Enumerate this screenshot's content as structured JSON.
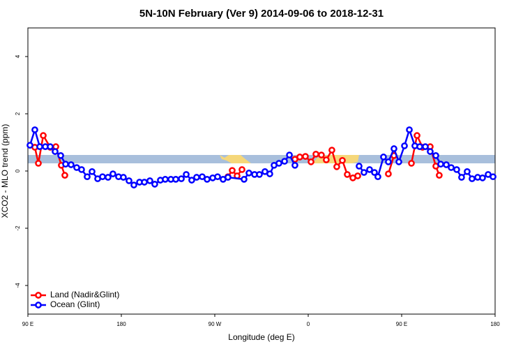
{
  "chart_data": {
    "type": "line",
    "title": "5N-10N February (Ver 9)   2014-09-06 to 2018-12-31",
    "x_label": "Longitude (deg E)",
    "y_label": "XCO2 - MLO trend (ppm)",
    "xlim": [
      90,
      540
    ],
    "ylim": [
      -5,
      5
    ],
    "xticks": [
      {
        "value": 90,
        "label": "90 E"
      },
      180,
      {
        "value": 270,
        "label": "90 W"
      },
      {
        "value": 360,
        "label": "0"
      },
      {
        "value": 450,
        "label": "90 E"
      },
      {
        "value": 540,
        "label": "180"
      }
    ],
    "yticks": [
      -4,
      -2,
      0,
      2,
      4
    ],
    "legend": "bottom-left",
    "series": [
      {
        "name": "Land (Nadir&Glint)",
        "color": "#ff0000",
        "x": [
          96.7,
          100.1,
          104.8,
          111.5,
          116.9,
          122.2,
          125.6,
          204,
          282.7,
          286.8,
          291.5,
          296.2,
          322,
          347.2,
          351.9,
          357.3,
          362.7,
          367.4,
          372.7,
          377.4,
          382.8,
          387.5,
          392.9,
          397.6,
          403.0,
          407.7,
          422,
          437.2,
          442.6,
          451,
          459.4,
          464.8,
          470.1,
          477.5,
          482.9,
          486.2
        ],
        "values": [
          0.83,
          0.27,
          1.24,
          0.83,
          0.85,
          0.2,
          -0.15,
          null,
          -0.2,
          0.02,
          -0.17,
          0.05,
          null,
          0.41,
          0.49,
          0.51,
          0.32,
          0.59,
          0.56,
          0.39,
          0.73,
          0.15,
          0.37,
          -0.12,
          -0.24,
          -0.17,
          null,
          -0.1,
          0.54,
          null,
          0.27,
          1.24,
          0.83,
          0.85,
          0.17,
          -0.15
        ]
      },
      {
        "name": "Ocean (Glint)",
        "color": "#0000ff",
        "x": [
          92.0,
          96.7,
          101.4,
          106.8,
          111.5,
          116.2,
          121.6,
          126.3,
          131.6,
          137.0,
          141.7,
          147.1,
          151.8,
          157.2,
          161.9,
          167.2,
          171.9,
          177.3,
          182.0,
          187.4,
          192.1,
          197.5,
          202.2,
          207.5,
          212.2,
          217.6,
          222.3,
          227.7,
          232.4,
          237.8,
          242.5,
          247.8,
          252.5,
          257.9,
          262.6,
          268.0,
          272.7,
          278.0,
          282.7,
          298.2,
          302.9,
          308.3,
          313.0,
          318.3,
          323.0,
          327.1,
          331.8,
          337.2,
          341.9,
          347.2,
          378,
          409.0,
          413.7,
          419.1,
          423.8,
          427.1,
          432.5,
          437.2,
          442.6,
          447.3,
          452.7,
          457.4,
          462.7,
          467.4,
          472.8,
          477.5,
          482.9,
          487.6,
          493.0,
          497.7,
          503.0,
          507.7,
          513.1,
          517.8,
          523.2,
          527.9,
          533.3,
          538.0
        ],
        "values": [
          0.9,
          1.44,
          0.85,
          0.85,
          0.85,
          0.68,
          0.54,
          0.24,
          0.22,
          0.12,
          0.05,
          -0.2,
          -0.02,
          -0.27,
          -0.2,
          -0.22,
          -0.1,
          -0.2,
          -0.22,
          -0.34,
          -0.49,
          -0.39,
          -0.39,
          -0.34,
          -0.46,
          -0.32,
          -0.29,
          -0.29,
          -0.29,
          -0.27,
          -0.12,
          -0.32,
          -0.22,
          -0.2,
          -0.29,
          -0.24,
          -0.2,
          -0.29,
          -0.22,
          -0.29,
          -0.07,
          -0.12,
          -0.12,
          -0.02,
          -0.1,
          0.2,
          0.27,
          0.34,
          0.56,
          0.2,
          null,
          0.17,
          -0.05,
          0.05,
          -0.05,
          -0.2,
          0.49,
          0.32,
          0.78,
          0.32,
          0.88,
          1.44,
          0.88,
          0.85,
          0.85,
          0.68,
          0.54,
          0.24,
          0.22,
          0.12,
          0.05,
          -0.22,
          -0.02,
          -0.27,
          -0.22,
          -0.24,
          -0.12,
          -0.2
        ]
      }
    ]
  }
}
